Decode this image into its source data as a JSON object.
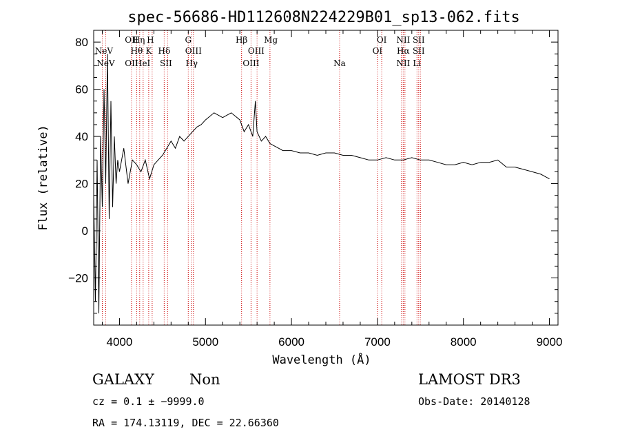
{
  "chart_data": {
    "type": "line",
    "title": "spec-56686-HD112608N224229B01_sp13-062.fits",
    "xlabel": "Wavelength (Å)",
    "ylabel": "Flux (relative)",
    "xlim": [
      3700,
      9100
    ],
    "ylim": [
      -40,
      85
    ],
    "x_ticks": [
      4000,
      5000,
      6000,
      7000,
      8000,
      9000
    ],
    "x_tick_labels": [
      "4000",
      "5000",
      "6000",
      "7000",
      "8000",
      "9000"
    ],
    "y_ticks": [
      -20,
      0,
      20,
      40,
      60,
      80
    ],
    "y_tick_labels": [
      "−20",
      "0",
      "20",
      "40",
      "60",
      "80"
    ],
    "grid": false,
    "series": [
      {
        "color": "#000000",
        "x": [
          3700,
          3720,
          3740,
          3760,
          3780,
          3800,
          3820,
          3840,
          3860,
          3880,
          3900,
          3920,
          3940,
          3960,
          3980,
          4000,
          4050,
          4100,
          4150,
          4200,
          4250,
          4300,
          4350,
          4400,
          4450,
          4500,
          4550,
          4600,
          4650,
          4700,
          4750,
          4800,
          4850,
          4900,
          4950,
          5000,
          5100,
          5200,
          5300,
          5400,
          5450,
          5500,
          5550,
          5580,
          5600,
          5650,
          5700,
          5750,
          5800,
          5850,
          5900,
          6000,
          6100,
          6200,
          6300,
          6400,
          6500,
          6600,
          6700,
          6800,
          6900,
          7000,
          7100,
          7200,
          7300,
          7400,
          7500,
          7600,
          7700,
          7800,
          7900,
          8000,
          8100,
          8200,
          8300,
          8400,
          8500,
          8600,
          8700,
          8800,
          8900,
          8950,
          9000
        ],
        "y": [
          15,
          -30,
          30,
          -35,
          40,
          10,
          60,
          20,
          75,
          5,
          55,
          10,
          40,
          20,
          30,
          25,
          35,
          20,
          30,
          28,
          25,
          30,
          22,
          28,
          30,
          32,
          35,
          38,
          35,
          40,
          38,
          40,
          42,
          44,
          45,
          47,
          50,
          48,
          50,
          47,
          42,
          45,
          40,
          55,
          42,
          38,
          40,
          37,
          36,
          35,
          34,
          34,
          33,
          33,
          32,
          33,
          33,
          32,
          32,
          31,
          30,
          30,
          31,
          30,
          30,
          31,
          30,
          30,
          29,
          28,
          28,
          29,
          28,
          29,
          29,
          30,
          27,
          27,
          26,
          25,
          24,
          23,
          22
        ]
      }
    ],
    "spectral_lines": [
      {
        "name": "NeV",
        "wavelength": 3820,
        "row": 2
      },
      {
        "name": "NeV",
        "wavelength": 3840,
        "row": 3
      },
      {
        "name": "OII",
        "wavelength": 4140,
        "row": 1
      },
      {
        "name": "OII",
        "wavelength": 4140,
        "row": 3
      },
      {
        "name": "Hη",
        "wavelength": 4225,
        "row": 1
      },
      {
        "name": "Hθ",
        "wavelength": 4200,
        "row": 2
      },
      {
        "name": "HeI",
        "wavelength": 4270,
        "row": 3
      },
      {
        "name": "H",
        "wavelength": 4360,
        "row": 1
      },
      {
        "name": "K",
        "wavelength": 4340,
        "row": 2
      },
      {
        "name": "Hδ",
        "wavelength": 4520,
        "row": 2
      },
      {
        "name": "SII",
        "wavelength": 4540,
        "row": 3
      },
      {
        "name": "G",
        "wavelength": 4800,
        "row": 1
      },
      {
        "name": "OIII",
        "wavelength": 4860,
        "row": 2
      },
      {
        "name": "Hγ",
        "wavelength": 4840,
        "row": 3
      },
      {
        "name": "Hβ",
        "wavelength": 5420,
        "row": 1
      },
      {
        "name": "OIII",
        "wavelength": 5590,
        "row": 2
      },
      {
        "name": "OIII",
        "wavelength": 5530,
        "row": 3
      },
      {
        "name": "Mg",
        "wavelength": 5760,
        "row": 1
      },
      {
        "name": "Na",
        "wavelength": 6560,
        "row": 3
      },
      {
        "name": "OI",
        "wavelength": 7050,
        "row": 1
      },
      {
        "name": "OI",
        "wavelength": 7000,
        "row": 2
      },
      {
        "name": "NII",
        "wavelength": 7300,
        "row": 1
      },
      {
        "name": "Hα",
        "wavelength": 7300,
        "row": 2
      },
      {
        "name": "NII",
        "wavelength": 7300,
        "row": 3
      },
      {
        "name": "SII",
        "wavelength": 7480,
        "row": 1
      },
      {
        "name": "SII",
        "wavelength": 7480,
        "row": 2
      },
      {
        "name": "Li",
        "wavelength": 7460,
        "row": 3
      }
    ],
    "line_markers": [
      3800,
      3840,
      4140,
      4200,
      4235,
      4275,
      4340,
      4380,
      4520,
      4560,
      4800,
      4840,
      4860,
      5420,
      5530,
      5600,
      5750,
      6560,
      7000,
      7050,
      7280,
      7300,
      7320,
      7460,
      7480,
      7500
    ]
  },
  "footer": {
    "object_class": "GALAXY",
    "subclass": "Non",
    "survey": "LAMOST DR3",
    "cz": "cz = 0.1 ± −9999.0",
    "obs_date": "Obs-Date: 20140128",
    "coords": "RA = 174.13119, DEC =  22.66360"
  }
}
